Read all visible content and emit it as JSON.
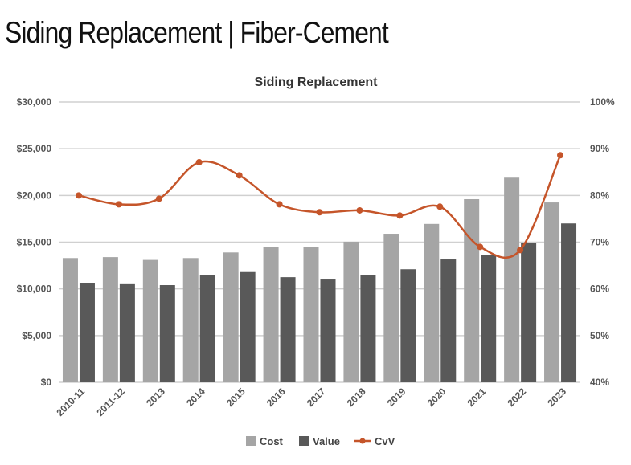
{
  "page_title": "Siding Replacement | Fiber-Cement",
  "chart_data": {
    "type": "bar",
    "title": "Siding Replacement",
    "categories": [
      "2010-11",
      "2011-12",
      "2013",
      "2014",
      "2015",
      "2016",
      "2017",
      "2018",
      "2019",
      "2020",
      "2021",
      "2022",
      "2023"
    ],
    "series": [
      {
        "name": "Cost",
        "type": "bar",
        "axis": "left",
        "color": "#a5a5a5",
        "values": [
          13300,
          13400,
          13100,
          13300,
          13900,
          14450,
          14450,
          15050,
          15900,
          16950,
          19600,
          21900,
          19250
        ]
      },
      {
        "name": "Value",
        "type": "bar",
        "axis": "left",
        "color": "#595959",
        "values": [
          10650,
          10500,
          10400,
          11500,
          11800,
          11250,
          11000,
          11450,
          12100,
          13150,
          13600,
          14950,
          17000
        ]
      },
      {
        "name": "CvV",
        "type": "line",
        "axis": "right",
        "color": "#c5552a",
        "values": [
          80.0,
          78.1,
          79.3,
          87.1,
          84.3,
          78.1,
          76.4,
          76.8,
          75.7,
          77.6,
          69.0,
          68.3,
          88.6
        ]
      }
    ],
    "left_axis": {
      "range": [
        0,
        30000
      ],
      "ticks": [
        "$0",
        "$5,000",
        "$10,000",
        "$15,000",
        "$20,000",
        "$25,000",
        "$30,000"
      ]
    },
    "right_axis": {
      "range": [
        40,
        100
      ],
      "ticks": [
        "40%",
        "50%",
        "60%",
        "70%",
        "80%",
        "90%",
        "100%"
      ]
    },
    "grid": true,
    "legend": "bottom"
  }
}
